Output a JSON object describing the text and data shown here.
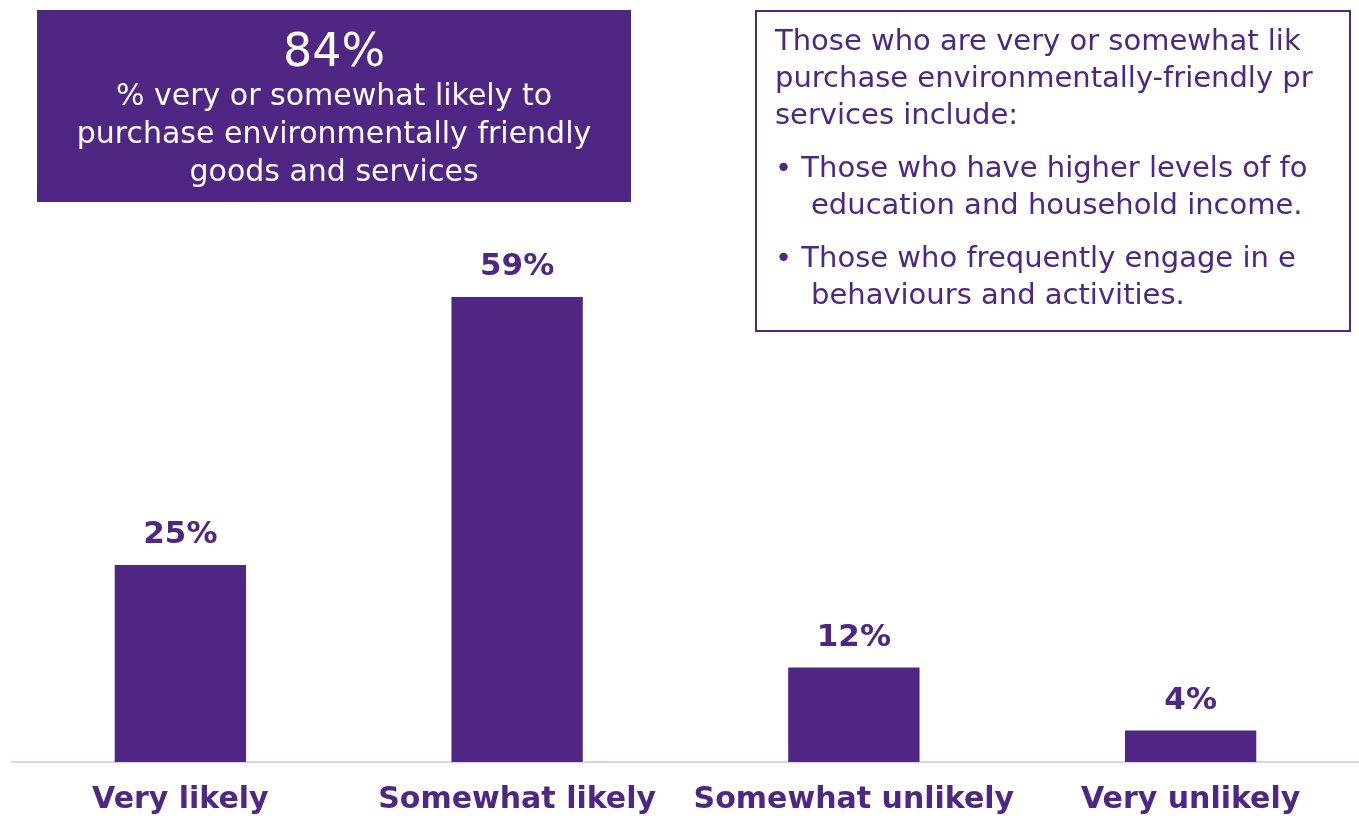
{
  "chart_data": {
    "type": "bar",
    "categories": [
      "Very likely",
      "Somewhat likely",
      "Somewhat unlikely",
      "Very unlikely"
    ],
    "values": [
      25,
      59,
      12,
      4
    ],
    "color": "#4f2683",
    "value_labels": [
      "25%",
      "59%",
      "12%",
      "4%"
    ],
    "grid": false,
    "legend": false,
    "tick_labels": "x",
    "annotations": [
      "84%",
      "% very or somewhat likely to purchase environmentally friendly goods and services",
      "Those who are very or somewhat lik purchase environmentally-friendly pr services include:",
      "• Those who have higher levels of fo education and household income.",
      "• Those who frequently engage in e behaviours and activities."
    ]
  }
}
